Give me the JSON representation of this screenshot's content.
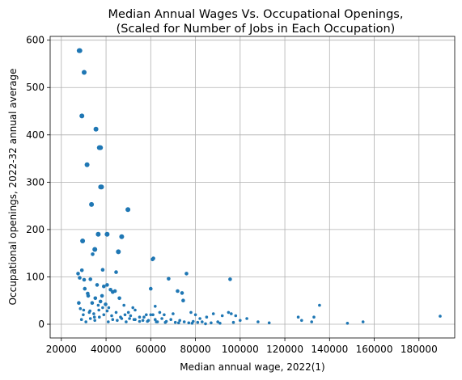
{
  "chart_data": {
    "type": "scatter",
    "title_lines": [
      "Median Annual Wages Vs. Occupational Openings,",
      "(Scaled for Number of Jobs in Each Occupation)"
    ],
    "xlabel": "Median annual wage, 2022(1)",
    "ylabel": "Occupational openings, 2022-32 annual average",
    "xlim": [
      15000,
      196000
    ],
    "ylim": [
      -29,
      608
    ],
    "xticks": [
      20000,
      40000,
      60000,
      80000,
      100000,
      120000,
      140000,
      160000,
      180000
    ],
    "xtick_labels": [
      "20000",
      "40000",
      "60000",
      "80000",
      "100000",
      "120000",
      "140000",
      "160000",
      "180000"
    ],
    "yticks": [
      0,
      100,
      200,
      300,
      400,
      500,
      600
    ],
    "ytick_labels": [
      "0",
      "100",
      "200",
      "300",
      "400",
      "500",
      "600"
    ],
    "grid": true,
    "marker_color": "#1f77b4",
    "series": [
      {
        "x": [
          28000,
          28300,
          29200,
          30200,
          31500,
          33500,
          35500,
          37000,
          37500,
          38000,
          37600,
          49800,
          36500,
          40500,
          47000,
          45500,
          61200,
          60800,
          29500,
          34000,
          35000,
          38500,
          44500,
          30200,
          27500,
          28200,
          29200,
          30500,
          32000,
          33000,
          36000,
          37500,
          39000,
          40500,
          42000,
          43000,
          44000,
          46000,
          48000,
          50000,
          52000,
          55000,
          58000,
          60000,
          62000,
          64000,
          66000,
          68000,
          70000,
          72000,
          74000,
          74500,
          76000,
          78000,
          80000,
          82000,
          85000,
          88000,
          90000,
          92000,
          95500,
          94800,
          96000,
          98000,
          100000,
          103000,
          108000,
          113000,
          126000,
          127500,
          132000,
          133000,
          135500,
          148000,
          155000,
          189500,
          29000,
          31000,
          33000,
          35000,
          37000,
          39000,
          41000,
          43000,
          45000,
          47000,
          49000,
          51000,
          53000,
          55000,
          57000,
          59000,
          61000,
          63000,
          65000,
          67000,
          69000,
          71000,
          73000,
          75000,
          77000,
          79000,
          81000,
          83000,
          87000,
          91000,
          97000,
          30000,
          32500,
          34500,
          36500,
          38500,
          40500,
          42500,
          44500,
          46500,
          48500,
          50500,
          52500,
          56500,
          58500,
          62500,
          66500,
          72500,
          78500,
          84500,
          33800,
          35200,
          36800,
          38200,
          39800,
          41200,
          28500,
          27800,
          29800,
          31800,
          32800,
          34800,
          53000,
          60000,
          62000
        ],
        "y": [
          578,
          578,
          440,
          532,
          337,
          253,
          412,
          373,
          373,
          290,
          290,
          242,
          190,
          190,
          185,
          153,
          139,
          137,
          176,
          148,
          158,
          115,
          110,
          94,
          107,
          98,
          114,
          75,
          60,
          95,
          83,
          48,
          80,
          83,
          73,
          68,
          70,
          55,
          40,
          25,
          35,
          15,
          20,
          75,
          38,
          25,
          20,
          96,
          22,
          70,
          66,
          50,
          107,
          25,
          20,
          12,
          15,
          22,
          5,
          18,
          95,
          25,
          22,
          18,
          8,
          12,
          5,
          3,
          15,
          8,
          5,
          15,
          40,
          2,
          5,
          17,
          10,
          5,
          12,
          8,
          15,
          20,
          5,
          10,
          8,
          12,
          5,
          18,
          10,
          6,
          15,
          8,
          20,
          5,
          12,
          6,
          10,
          4,
          8,
          5,
          3,
          6,
          4,
          5,
          3,
          2,
          4,
          30,
          25,
          22,
          40,
          35,
          28,
          18,
          25,
          15,
          20,
          12,
          10,
          8,
          6,
          5,
          4,
          3,
          2,
          1,
          45,
          55,
          30,
          60,
          42,
          35,
          33,
          45,
          20,
          65,
          28,
          15,
          30,
          20,
          10
        ]
      }
    ]
  }
}
